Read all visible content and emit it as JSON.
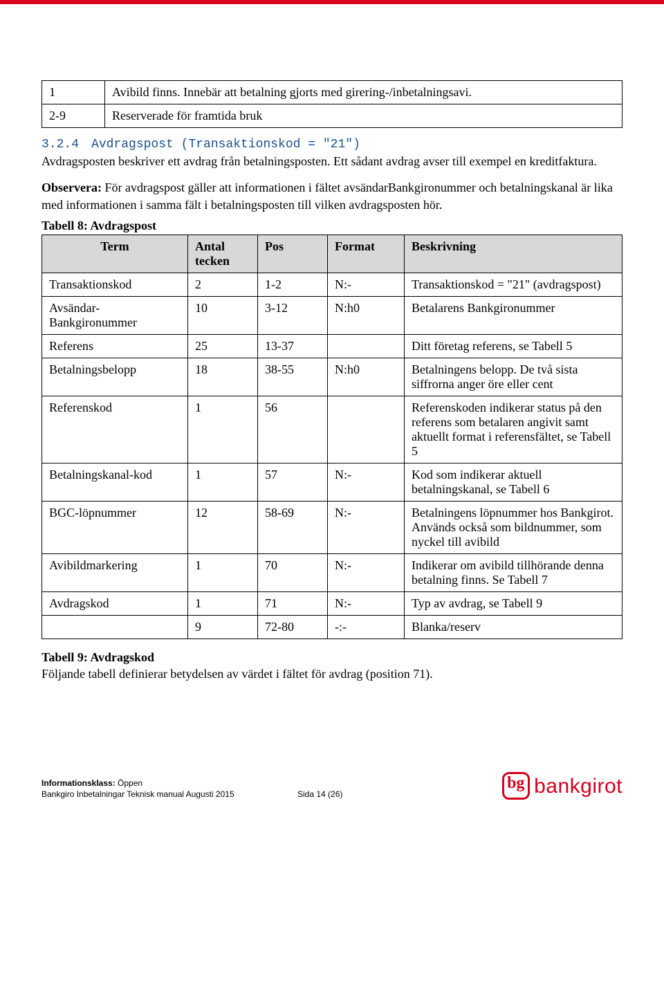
{
  "colors": {
    "accent_red": "#d6001d",
    "heading_blue": "#1a4f8b",
    "table_header_bg": "#d8d8d8",
    "border": "#000000",
    "text": "#000000",
    "background": "#ffffff"
  },
  "top_table": {
    "rows": [
      {
        "code": "1",
        "text": "Avibild finns. Innebär att betalning gjorts med girering-/inbetalningsavi."
      },
      {
        "code": "2-9",
        "text": "Reserverade för framtida bruk"
      }
    ]
  },
  "section": {
    "number": "3.2.4",
    "title": "Avdragspost (Transaktionskod = \"21\")",
    "body": "Avdragsposten beskriver ett avdrag från betalningsposten. Ett sådant avdrag avser till exempel en kreditfaktura.",
    "observera_lead": "Observera:",
    "observera_body": " För avdragspost gäller att informationen i fältet avsändarBankgironummer och betalningskanal är lika med informationen i samma fält i betalningsposten till vilken avdragsposten hör."
  },
  "table8": {
    "caption": "Tabell 8: Avdragspost",
    "columns": [
      "Term",
      "Antal tecken",
      "Pos",
      "Format",
      "Beskrivning"
    ],
    "rows": [
      {
        "term": "Transaktionskod",
        "antal": "2",
        "pos": "1-2",
        "format": "N:-",
        "beskrivning": "Transaktionskod = \"21\" (avdragspost)"
      },
      {
        "term": "Avsändar-Bankgironummer",
        "antal": "10",
        "pos": "3-12",
        "format": "N:h0",
        "beskrivning": "Betalarens Bankgironummer"
      },
      {
        "term": "Referens",
        "antal": "25",
        "pos": "13-37",
        "format": "",
        "beskrivning": "Ditt företag referens, se Tabell 5"
      },
      {
        "term": "Betalningsbelopp",
        "antal": "18",
        "pos": "38-55",
        "format": "N:h0",
        "beskrivning": "Betalningens belopp. De två sista siffrorna anger öre eller cent"
      },
      {
        "term": "Referenskod",
        "antal": "1",
        "pos": "56",
        "format": "",
        "beskrivning": "Referenskoden indikerar status på den referens som betalaren angivit samt aktuellt format i referensfältet, se Tabell 5"
      },
      {
        "term": "Betalningskanal-kod",
        "antal": "1",
        "pos": "57",
        "format": "N:-",
        "beskrivning": "Kod som indikerar aktuell betalningskanal, se Tabell 6"
      },
      {
        "term": "BGC-löpnummer",
        "antal": "12",
        "pos": "58-69",
        "format": "N:-",
        "beskrivning": "Betalningens löpnummer hos Bankgirot. Används också som bildnummer, som nyckel till avibild"
      },
      {
        "term": "Avibildmarkering",
        "antal": "1",
        "pos": "70",
        "format": "N:-",
        "beskrivning": "Indikerar om avibild tillhörande denna betalning finns. Se Tabell 7"
      },
      {
        "term": "Avdragskod",
        "antal": "1",
        "pos": "71",
        "format": "N:-",
        "beskrivning": "Typ av avdrag, se Tabell 9"
      },
      {
        "term": "",
        "antal": "9",
        "pos": "72-80",
        "format": "-:-",
        "beskrivning": "Blanka/reserv"
      }
    ]
  },
  "after_table": {
    "lead": "Tabell 9: Avdragskod",
    "body": "Följande tabell definierar betydelsen av värdet i fältet för avdrag (position 71)."
  },
  "footer": {
    "info_label": "Informationsklass:",
    "info_value": "Öppen",
    "doc_line": "Bankgiro Inbetalningar Teknisk manual Augusti 2015",
    "page_label": "Sida 14 (26)",
    "logo_text": "bankgirot"
  }
}
